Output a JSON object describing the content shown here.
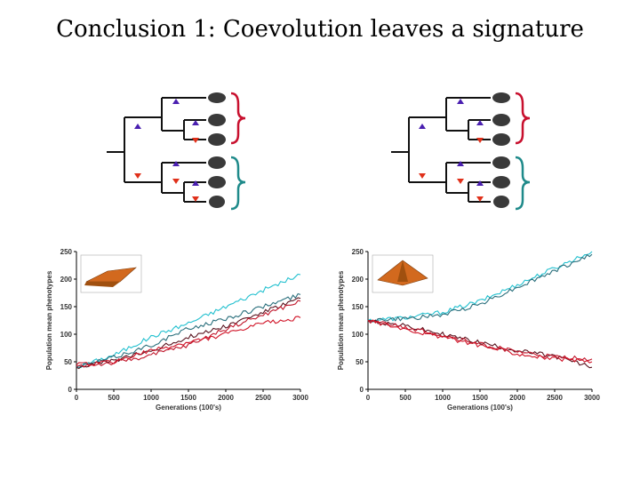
{
  "slide": {
    "title": "Conclusion 1: Coevolution leaves a signature"
  },
  "colors": {
    "cyan": "#22c0cf",
    "teal": "#2a6f7c",
    "dark_red": "#5a1520",
    "red": "#c0152a",
    "crimson": "#d01226",
    "bracket_red": "#c8102e",
    "bracket_teal": "#1f8a8a",
    "arrow_top": "#4a1fb0",
    "arrow_bottom": "#e0301a"
  },
  "chart_data": [
    {
      "type": "line",
      "xlabel": "Generations (100's)",
      "ylabel": "Population mean phenotypes",
      "xlim": [
        0,
        3000
      ],
      "ylim": [
        0,
        250
      ],
      "x_ticks": [
        "0",
        "500",
        "1000",
        "1500",
        "2000",
        "2500",
        "3000"
      ],
      "y_ticks": [
        "0",
        "50",
        "100",
        "150",
        "200",
        "250"
      ],
      "x": [
        0,
        500,
        1000,
        1500,
        2000,
        2500,
        3000
      ],
      "series": [
        {
          "color": "#22c0cf",
          "values": [
            40,
            62,
            95,
            120,
            150,
            180,
            208
          ]
        },
        {
          "color": "#2a6f7c",
          "values": [
            40,
            58,
            80,
            110,
            128,
            150,
            172
          ]
        },
        {
          "color": "#5a1520",
          "values": [
            40,
            52,
            70,
            95,
            115,
            140,
            165
          ]
        },
        {
          "color": "#c0152a",
          "values": [
            42,
            48,
            62,
            80,
            110,
            135,
            160
          ]
        },
        {
          "color": "#d01226",
          "values": [
            44,
            50,
            70,
            85,
            100,
            120,
            130
          ]
        }
      ]
    },
    {
      "type": "line",
      "xlabel": "Generations (100's)",
      "ylabel": "Population mean phenotypes",
      "xlim": [
        0,
        3000
      ],
      "ylim": [
        0,
        250
      ],
      "x_ticks": [
        "0",
        "500",
        "1000",
        "1500",
        "2000",
        "2500",
        "3000"
      ],
      "y_ticks": [
        "0",
        "50",
        "100",
        "150",
        "200",
        "250"
      ],
      "x": [
        0,
        500,
        1000,
        1500,
        2000,
        2500,
        3000
      ],
      "series": [
        {
          "color": "#22c0cf",
          "values": [
            125,
            130,
            140,
            160,
            190,
            220,
            250
          ]
        },
        {
          "color": "#2a6f7c",
          "values": [
            125,
            128,
            135,
            155,
            185,
            215,
            245
          ]
        },
        {
          "color": "#5a1520",
          "values": [
            125,
            115,
            100,
            85,
            70,
            60,
            40
          ]
        },
        {
          "color": "#c0152a",
          "values": [
            125,
            112,
            98,
            82,
            68,
            58,
            55
          ]
        },
        {
          "color": "#d01226",
          "values": [
            125,
            110,
            95,
            80,
            65,
            55,
            50
          ]
        }
      ]
    }
  ]
}
